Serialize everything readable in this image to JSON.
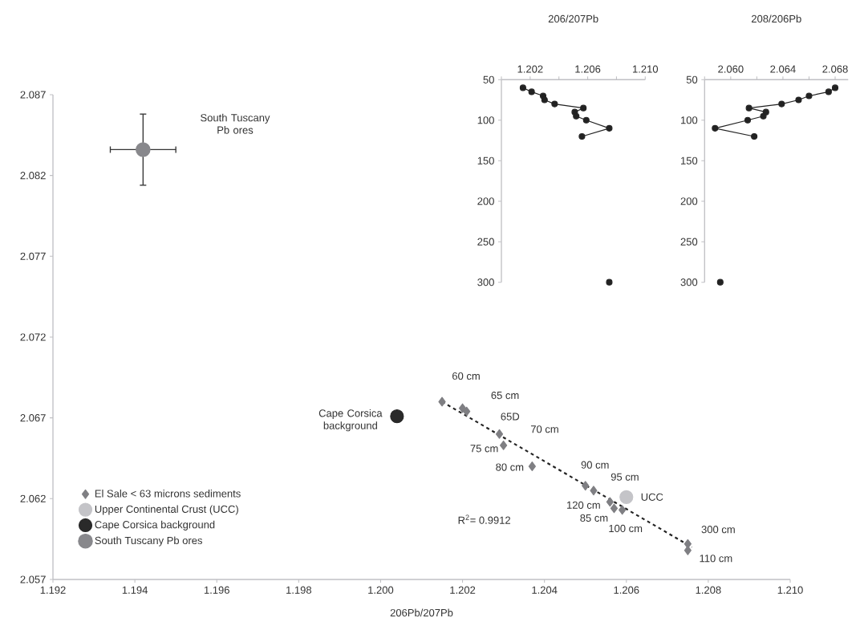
{
  "chart_data": [
    {
      "type": "scatter",
      "xlabel": "206Pb/207Pb",
      "xlim": [
        1.192,
        1.21
      ],
      "ylim": [
        2.057,
        2.087
      ],
      "xticks": [
        1.192,
        1.194,
        1.196,
        1.198,
        {
          "value": 1.2,
          "label": "1.200"
        },
        1.202,
        1.204,
        1.206,
        1.208,
        {
          "value": 1.21,
          "label": "1.210"
        }
      ],
      "yticks": [
        2.057,
        2.062,
        2.067,
        2.072,
        2.077,
        2.082,
        2.087
      ],
      "legend": "bottom left",
      "series": [
        {
          "name": "El Sale < 63 microns sediments",
          "color": "#7f7f83",
          "marker": "diamond",
          "x": [
            1.2015,
            1.202,
            1.2021,
            1.2029,
            1.203,
            1.2037,
            1.2057,
            1.205,
            1.2052,
            1.2059,
            1.2075,
            1.2056,
            1.2075
          ],
          "values": [
            2.068,
            2.0676,
            2.0674,
            2.066,
            2.0653,
            2.064,
            2.0614,
            2.0628,
            2.0625,
            2.0613,
            2.0588,
            2.0618,
            2.0592
          ]
        },
        {
          "name": "Upper Continental Crust (UCC)",
          "color": "#c4c4c8",
          "marker": "circle",
          "x": [
            1.206
          ],
          "values": [
            2.0621
          ]
        },
        {
          "name": "Cape Corsica background",
          "color": "#2a2a2a",
          "marker": "circle",
          "x": [
            1.2004
          ],
          "values": [
            2.0671
          ]
        },
        {
          "name": "South Tuscany Pb ores",
          "color": "#88888c",
          "marker": "circle",
          "x": [
            1.1942
          ],
          "values": [
            2.0836
          ],
          "errors": [
            0.0022
          ],
          "xerrors": [
            0.0008
          ]
        },
        {
          "type": "line",
          "color": "#222222",
          "marker": "none",
          "line_style": "dashed",
          "x": [
            1.2015,
            1.2076
          ],
          "values": [
            2.068,
            2.059
          ]
        }
      ],
      "annotations": [
        {
          "text": "60 cm",
          "x": 1.2015,
          "y": 2.068
        },
        {
          "text": "65 cm",
          "x": 1.202,
          "y": 2.0676
        },
        "65D",
        "70 cm",
        {
          "text": "75 cm",
          "x": 1.203,
          "y": 2.0653
        },
        {
          "text": "80 cm",
          "x": 1.2037,
          "y": 2.064
        },
        {
          "text": "90 cm",
          "x": 1.205,
          "y": 2.0628
        },
        {
          "text": "95 cm",
          "x": 1.2052,
          "y": 2.0625
        },
        {
          "text": "120 cm",
          "x": 1.2056,
          "y": 2.0618
        },
        {
          "text": "85 cm",
          "x": 1.2057,
          "y": 2.0614
        },
        {
          "text": "100 cm",
          "x": 1.2059,
          "y": 2.0613
        },
        {
          "text": "300 cm",
          "x": 1.2075,
          "y": 2.0592
        },
        {
          "text": "110 cm",
          "x": 1.2075,
          "y": 2.0588
        },
        {
          "text": "UCC",
          "x": 1.206,
          "y": 2.0621
        },
        {
          "text": "Cape Corsica background",
          "x": 1.2004,
          "y": 2.0671
        },
        "South Tuscany Pb ores",
        "R$^{2}$= 0.9912"
      ]
    },
    {
      "type": "line",
      "xlabel": "206/207Pb",
      "xlim": [
        1.2,
        1.21
      ],
      "ylim": [
        300,
        50
      ],
      "xticks": [
        {
          "value": 1.2,
          "label": null
        },
        1.202,
        {
          "value": 1.204,
          "label": null
        },
        1.206,
        {
          "value": 1.208,
          "label": null
        },
        {
          "value": 1.21,
          "label": "1.210"
        }
      ],
      "yticks": [
        50,
        100,
        150,
        200,
        250,
        300
      ],
      "series": [
        {
          "color": "#222222",
          "marker": "circle",
          "x": [
            1.2015,
            1.2021,
            1.2029,
            1.203,
            1.2037,
            1.2057,
            1.2051,
            1.2052,
            1.2059,
            1.2075,
            1.2056
          ],
          "values": [
            60,
            65,
            70,
            75,
            80,
            85,
            90,
            95,
            100,
            110,
            120
          ]
        },
        {
          "type": "scatter",
          "color": "#222222",
          "marker": "circle",
          "x": [
            1.2075
          ],
          "values": [
            300
          ]
        }
      ]
    },
    {
      "type": "line",
      "xlabel": "208/206Pb",
      "xlim": [
        2.058,
        2.069
      ],
      "ylim": [
        300,
        50
      ],
      "xticks": [
        {
          "value": 2.058,
          "label": null
        },
        {
          "value": 2.06,
          "label": "2.060"
        },
        {
          "value": 2.062,
          "label": null
        },
        2.064,
        {
          "value": 2.066,
          "label": null
        },
        2.068
      ],
      "yticks": [
        50,
        100,
        150,
        200,
        250,
        300
      ],
      "series": [
        {
          "color": "#222222",
          "marker": "circle",
          "x": [
            2.068,
            2.0675,
            2.066,
            2.0652,
            2.0639,
            2.0614,
            2.0627,
            2.0625,
            2.0613,
            2.0588,
            2.0618
          ],
          "values": [
            60,
            65,
            70,
            75,
            80,
            85,
            90,
            95,
            100,
            110,
            120
          ]
        },
        {
          "type": "scatter",
          "color": "#222222",
          "marker": "circle",
          "x": [
            2.0592
          ],
          "values": [
            300
          ]
        }
      ]
    }
  ]
}
